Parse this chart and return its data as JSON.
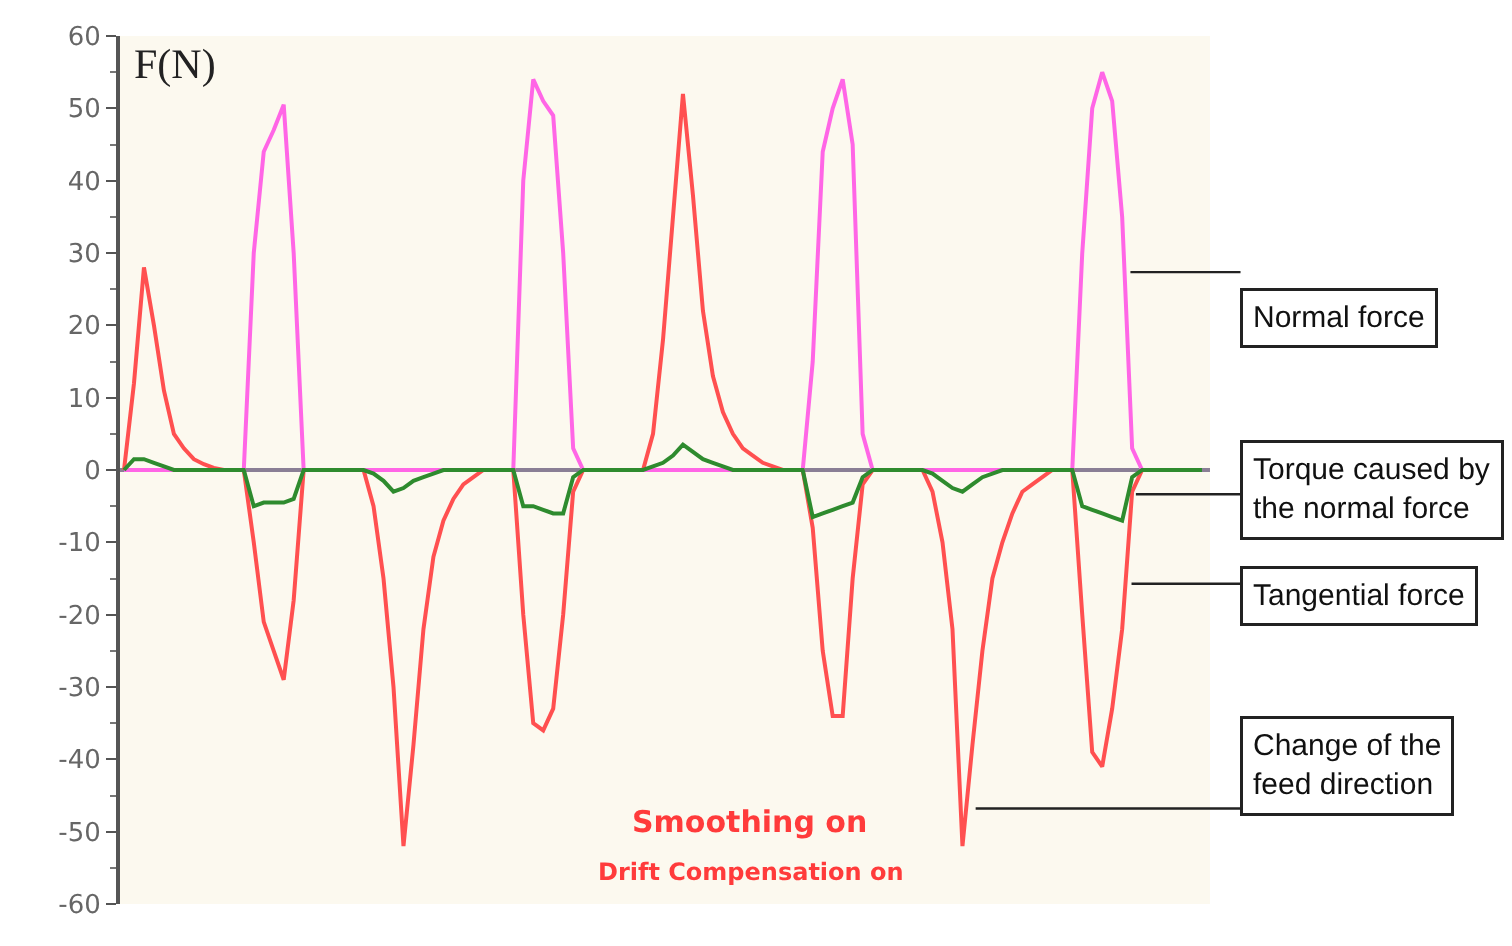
{
  "chart_data": {
    "type": "line",
    "ylabel": "F(N)",
    "categories": [
      null,
      null,
      null,
      null,
      null,
      null,
      null,
      null,
      null,
      null,
      null,
      null,
      null,
      null,
      null,
      null,
      null,
      null,
      null,
      null,
      null,
      null,
      null,
      null,
      null,
      null,
      null,
      null,
      null,
      null,
      null,
      null,
      null,
      null,
      null,
      null,
      null,
      null,
      null,
      null,
      null,
      null,
      null,
      null,
      null,
      null,
      null,
      null,
      null,
      null,
      null,
      null,
      null,
      null,
      null,
      null,
      null,
      null,
      null,
      null,
      null,
      null,
      null,
      null,
      null,
      null,
      null,
      null,
      null,
      null,
      null,
      null,
      null,
      null,
      null,
      null,
      null,
      null,
      null,
      null,
      null,
      null,
      null,
      null,
      null,
      null,
      null,
      null,
      null,
      null,
      null,
      null,
      null,
      null,
      null,
      null,
      null,
      null,
      null,
      null,
      null,
      null,
      null,
      null,
      null,
      null,
      null,
      null,
      null
    ],
    "series": [
      {
        "color": "#ff5050",
        "values": [
          0,
          12,
          28,
          20,
          11,
          5,
          3,
          1.5,
          0.8,
          0.3,
          0,
          0,
          0,
          -10,
          -21,
          -25,
          -29,
          -18,
          0,
          0,
          0,
          0,
          0,
          0,
          0,
          -5,
          -15,
          -30,
          -52,
          -38,
          -22,
          -12,
          -7,
          -4,
          -2,
          -1,
          0,
          0,
          0,
          0,
          -20,
          -35,
          -36,
          -33,
          -20,
          -3,
          0,
          0,
          0,
          0,
          0,
          0,
          0,
          5,
          18,
          35,
          52,
          38,
          22,
          13,
          8,
          5,
          3,
          2,
          1,
          0.5,
          0,
          0,
          0,
          -8,
          -25,
          -34,
          -34,
          -15,
          -2,
          0,
          0,
          0,
          0,
          0,
          0,
          -3,
          -10,
          -22,
          -52,
          -38,
          -25,
          -15,
          -10,
          -6,
          -3,
          -2,
          -1,
          0,
          0,
          0,
          -20,
          -39,
          -41,
          -33,
          -22,
          -3,
          0,
          0,
          0,
          null,
          null,
          null,
          null
        ]
      },
      {
        "color": "#ff66e6",
        "values": [
          0,
          0,
          0,
          0,
          0,
          0,
          0,
          0,
          0,
          0,
          0,
          0,
          0,
          30,
          44,
          47,
          50.5,
          30,
          0,
          0,
          0,
          0,
          0,
          0,
          0,
          0,
          0,
          0,
          0,
          0,
          0,
          0,
          0,
          0,
          0,
          0,
          0,
          0,
          0,
          0,
          40,
          54,
          51,
          49,
          30,
          3,
          0,
          0,
          0,
          0,
          0,
          0,
          0,
          0,
          0,
          0,
          0,
          0,
          0,
          0,
          0,
          0,
          0,
          0,
          0,
          0,
          0,
          0,
          0,
          15,
          44,
          50,
          54,
          45,
          5,
          0,
          0,
          0,
          0,
          0,
          0,
          0,
          0,
          0,
          0,
          0,
          0,
          0,
          0,
          0,
          0,
          0,
          0,
          0,
          0,
          0,
          30,
          50,
          55,
          51,
          35,
          3,
          0,
          0,
          0,
          null,
          null,
          null,
          null
        ]
      },
      {
        "color": "#2e8b2e",
        "values": [
          0,
          1.5,
          1.5,
          1,
          0.5,
          0,
          0,
          0,
          0,
          0,
          0,
          0,
          0,
          -5,
          -4.5,
          -4.5,
          -4.5,
          -4,
          0,
          0,
          0,
          0,
          0,
          0,
          0,
          -0.5,
          -1.5,
          -3,
          -2.5,
          -1.5,
          -1,
          -0.5,
          0,
          0,
          0,
          0,
          0,
          0,
          0,
          0,
          -5,
          -5,
          -5.5,
          -6,
          -6,
          -1,
          0,
          0,
          0,
          0,
          0,
          0,
          0,
          0.5,
          1,
          2,
          3.5,
          2.5,
          1.5,
          1,
          0.5,
          0,
          0,
          0,
          0,
          0,
          0,
          0,
          0,
          -6.5,
          -6,
          -5.5,
          -5,
          -4.5,
          -1,
          0,
          0,
          0,
          0,
          0,
          0,
          -0.5,
          -1.5,
          -2.5,
          -3,
          -2,
          -1,
          -0.5,
          0,
          0,
          0,
          0,
          0,
          0,
          0,
          0,
          -5,
          -5.5,
          -6,
          -6.5,
          -7,
          -1,
          0,
          0,
          0,
          0,
          0,
          0,
          0
        ]
      }
    ],
    "ylim": [
      -60,
      60
    ],
    "yticks": [
      -60,
      -50,
      -40,
      -30,
      -20,
      -10,
      0,
      10,
      20,
      30,
      40,
      50,
      60
    ],
    "ref_lines": [
      {
        "axis": "y",
        "value": 0,
        "color": "#8a7f95"
      }
    ],
    "marker": "none",
    "line_style": "solid",
    "tick_labels": "y",
    "annotations": [
      "Normal force",
      "Torque caused by the normal force",
      "Tangential force",
      "Change of the feed direction",
      "Smoothing on",
      "Drift Compensation on"
    ]
  }
}
